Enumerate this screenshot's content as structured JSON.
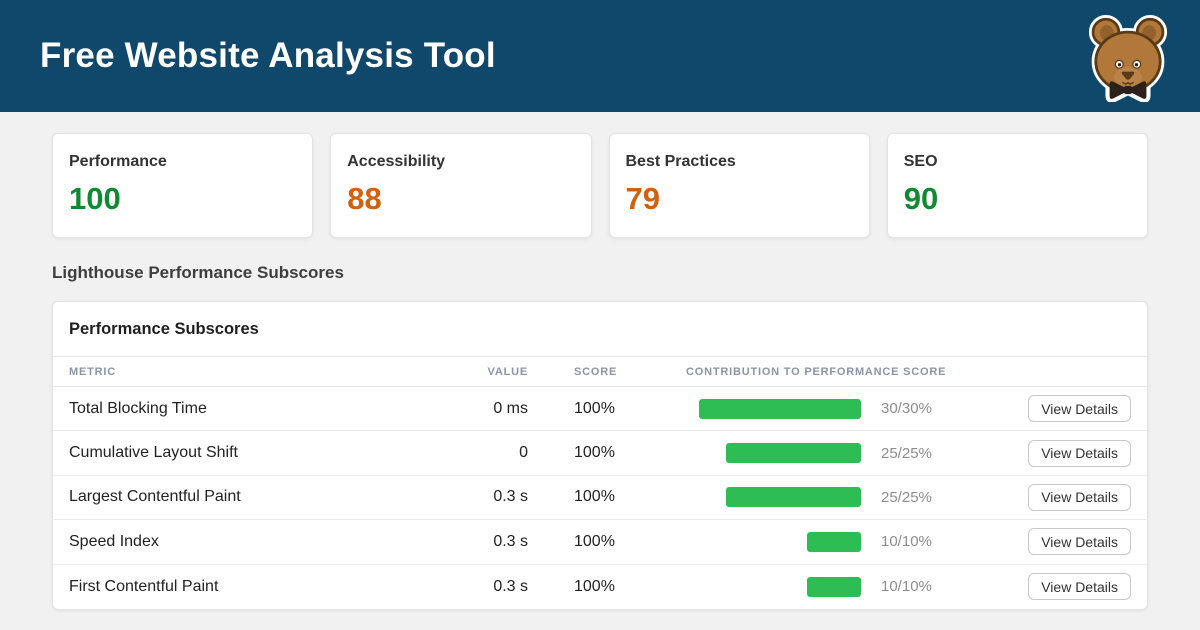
{
  "header": {
    "title": "Free Website Analysis Tool",
    "bg_color": "#0f486b",
    "logo_icon": "teddy-bear-icon"
  },
  "scorecards": [
    {
      "label": "Performance",
      "score": "100",
      "color": "#0e8a30"
    },
    {
      "label": "Accessibility",
      "score": "88",
      "color": "#d2610e"
    },
    {
      "label": "Best Practices",
      "score": "79",
      "color": "#d2610e"
    },
    {
      "label": "SEO",
      "score": "90",
      "color": "#0e8a30"
    }
  ],
  "section": {
    "heading": "Lighthouse Performance Subscores"
  },
  "table": {
    "title": "Performance Subscores",
    "columns": [
      "METRIC",
      "VALUE",
      "SCORE",
      "CONTRIBUTION TO PERFORMANCE SCORE"
    ],
    "bar_color": "#2ebd54",
    "view_details_label": "View Details",
    "rows": [
      {
        "metric": "Total Blocking Time",
        "value": "0 ms",
        "score": "100%",
        "contribution": 30,
        "contribution_max": 30,
        "contribution_label": "30/30%"
      },
      {
        "metric": "Cumulative Layout Shift",
        "value": "0",
        "score": "100%",
        "contribution": 25,
        "contribution_max": 25,
        "contribution_label": "25/25%"
      },
      {
        "metric": "Largest Contentful Paint",
        "value": "0.3 s",
        "score": "100%",
        "contribution": 25,
        "contribution_max": 25,
        "contribution_label": "25/25%"
      },
      {
        "metric": "Speed Index",
        "value": "0.3 s",
        "score": "100%",
        "contribution": 10,
        "contribution_max": 10,
        "contribution_label": "10/10%"
      },
      {
        "metric": "First Contentful Paint",
        "value": "0.3 s",
        "score": "100%",
        "contribution": 10,
        "contribution_max": 10,
        "contribution_label": "10/10%"
      }
    ]
  }
}
